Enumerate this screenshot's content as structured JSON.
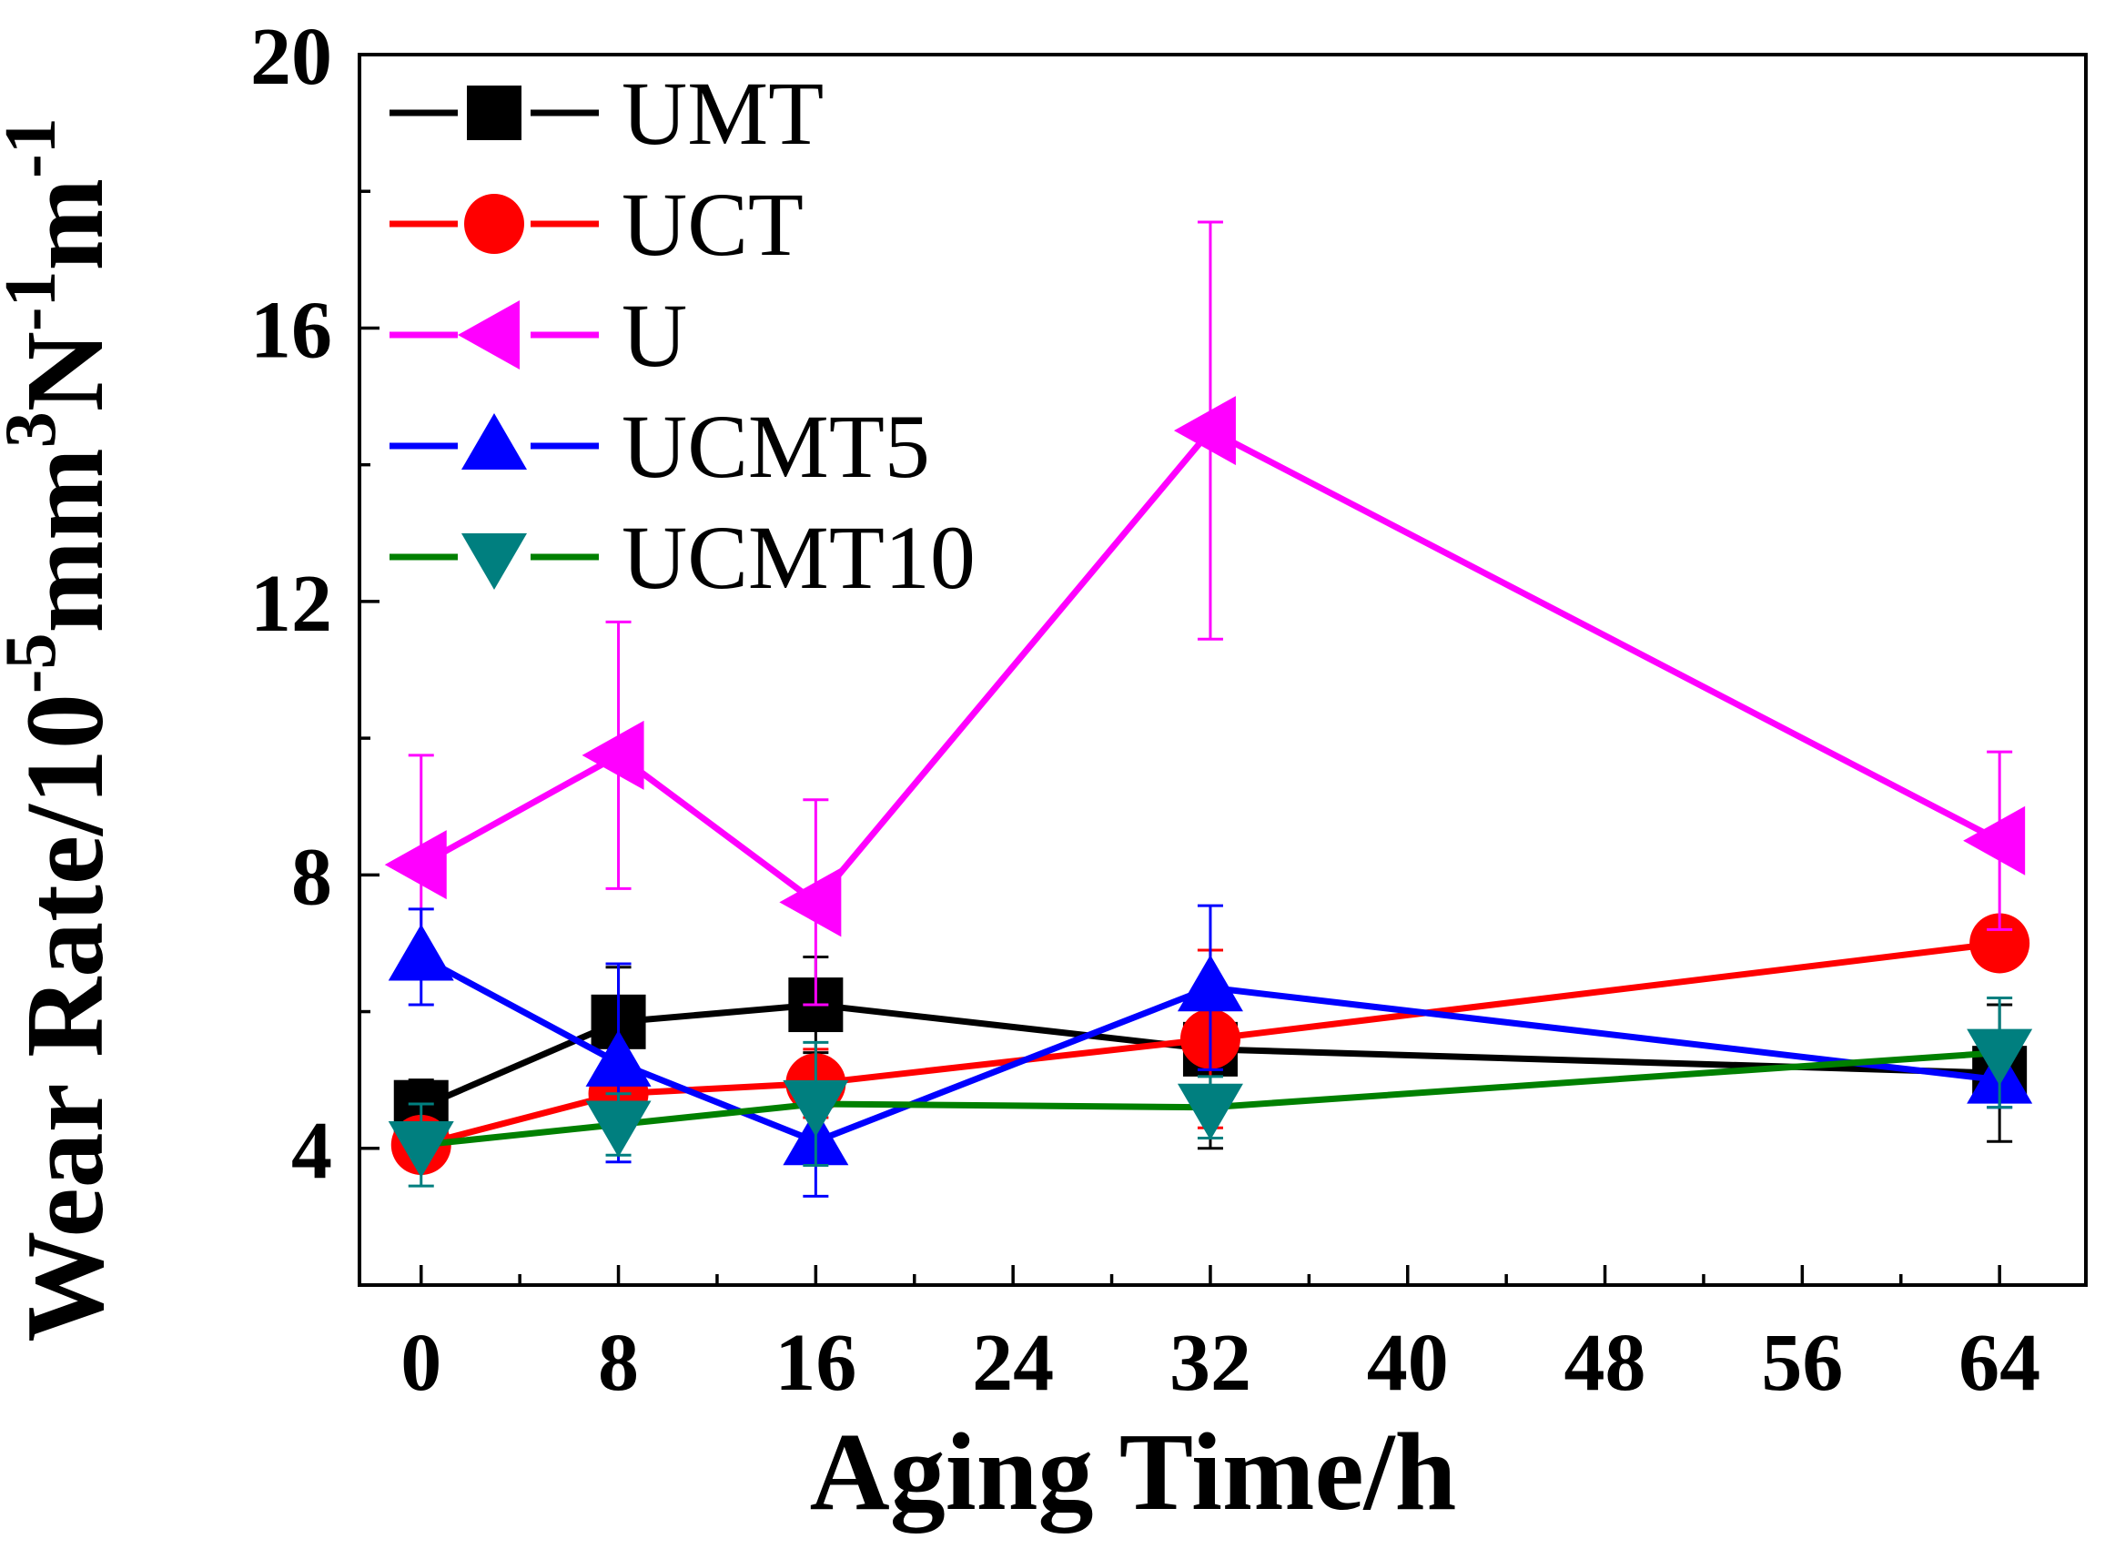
{
  "chart_data": {
    "type": "line",
    "title": "",
    "xlabel": "Aging Time/h",
    "ylabel": {
      "prefix": "Wear Rate/10",
      "exp1": "-5",
      "mid1": "mm",
      "exp2": "3",
      "mid2": "N",
      "exp3": "-1",
      "mid3": "m",
      "exp4": "-1"
    },
    "xlim": [
      -2.5,
      67.5
    ],
    "ylim": [
      2,
      20
    ],
    "xticks": [
      0,
      8,
      16,
      24,
      32,
      40,
      48,
      56,
      64
    ],
    "xtick_labels": [
      "0",
      "8",
      "16",
      "24",
      "32",
      "40",
      "48",
      "56",
      "64"
    ],
    "yticks": [
      4,
      8,
      12,
      16,
      20
    ],
    "ytick_labels": [
      "4",
      "8",
      "12",
      "16",
      "20"
    ],
    "grid": false,
    "legend_position": "top-left",
    "x": [
      0,
      8,
      16,
      32,
      64
    ],
    "series": [
      {
        "name": "UMT",
        "color": "#000000",
        "marker": "square",
        "values": [
          4.6,
          5.85,
          6.1,
          5.45,
          5.1
        ],
        "errors": [
          0.4,
          0.8,
          0.7,
          1.45,
          1.0
        ]
      },
      {
        "name": "UCT",
        "color": "#ff0000",
        "marker": "circle",
        "values": [
          4.05,
          4.8,
          4.95,
          5.6,
          7.0
        ],
        "errors": [
          0.3,
          0.5,
          0.5,
          1.3,
          0.0
        ]
      },
      {
        "name": "U",
        "color": "#ff00ff",
        "marker": "triangle-left",
        "values": [
          8.15,
          9.75,
          7.6,
          14.5,
          8.5
        ],
        "errors": [
          1.6,
          1.95,
          1.5,
          3.05,
          1.3
        ]
      },
      {
        "name": "UCMT5",
        "color": "#0000ff",
        "marker": "triangle-up",
        "values": [
          6.8,
          5.25,
          4.1,
          6.35,
          5.0
        ],
        "errors": [
          0.7,
          1.45,
          0.8,
          1.2,
          0.4
        ]
      },
      {
        "name": "UCMT10",
        "color": "#007f7f",
        "line_color": "#008000",
        "marker": "triangle-down",
        "values": [
          4.05,
          4.35,
          4.65,
          4.6,
          5.4
        ],
        "errors": [
          0.6,
          0.45,
          0.9,
          0.45,
          0.8
        ]
      }
    ]
  }
}
